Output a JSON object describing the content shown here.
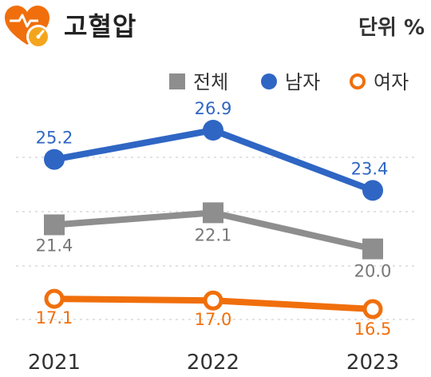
{
  "header": {
    "title": "고혈압",
    "unit": "단위 %",
    "icon": "heart-gauge-icon"
  },
  "colors": {
    "total": "#8e8e8e",
    "male": "#2f66c4",
    "female": "#f06f0c",
    "icon": "#f06f0c",
    "icon_gauge": "#f4a51d",
    "grid": "#d8d8d8"
  },
  "chart_data": {
    "type": "line",
    "categories": [
      "2021",
      "2022",
      "2023"
    ],
    "series": [
      {
        "key": "total",
        "name": "전체",
        "marker": "square",
        "values": [
          21.4,
          22.1,
          20.0
        ],
        "label_values": [
          "21.4",
          "22.1",
          "20.0"
        ]
      },
      {
        "key": "male",
        "name": "남자",
        "marker": "circle",
        "values": [
          25.2,
          26.9,
          23.4
        ],
        "label_values": [
          "25.2",
          "26.9",
          "23.4"
        ]
      },
      {
        "key": "female",
        "name": "여자",
        "marker": "ring",
        "values": [
          17.1,
          17.0,
          16.5
        ],
        "label_values": [
          "17.1",
          "17.0",
          "16.5"
        ]
      }
    ],
    "ylim": [
      14,
      28
    ],
    "grid": true,
    "legend_position": "top-right"
  }
}
